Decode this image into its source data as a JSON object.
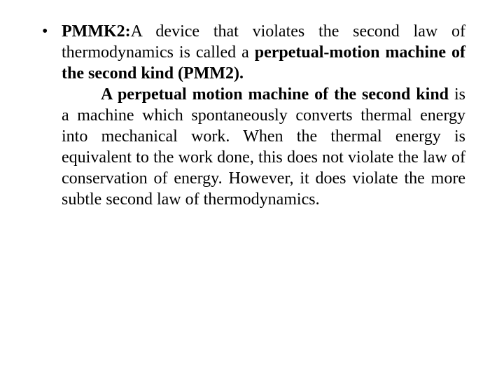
{
  "bullet_glyph": "•",
  "para1": {
    "heading": "PMMK2:",
    "run1": "A device that violates the second law of thermodynamics is called a ",
    "bold1": "perpetual-motion machine of the second kind (PMM2).",
    "indent_bold": "A perpetual motion machine of the second kind",
    "run2": " is a machine which spontaneously converts thermal energy into mechanical work. When the thermal energy is equivalent to the work done, this does not violate the law of conservation of energy. However, it does violate the more subtle second law of thermodynamics."
  },
  "style": {
    "font_family": "Times New Roman",
    "font_size_pt": 18,
    "text_color": "#000000",
    "background_color": "#ffffff",
    "text_align": "justify"
  }
}
